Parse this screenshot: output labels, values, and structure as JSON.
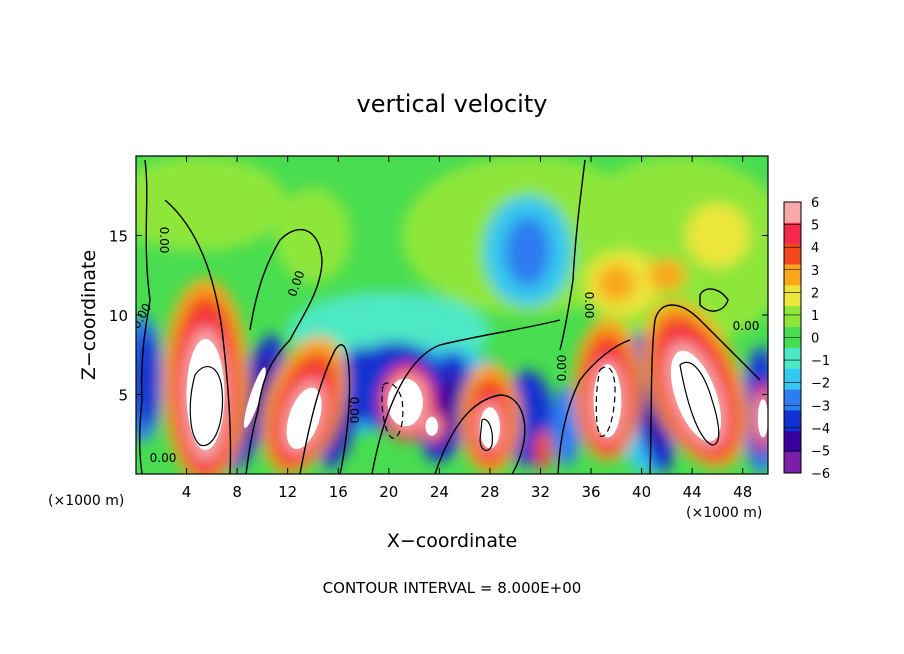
{
  "chart_data": {
    "type": "heatmap",
    "title": "vertical velocity",
    "xlabel": "X−coordinate",
    "ylabel": "Z−coordinate",
    "x_unit_left": "(×1000 m)",
    "x_unit_right": "(×1000 m)",
    "xlim": [
      0,
      50
    ],
    "ylim": [
      0,
      20
    ],
    "x_ticks": [
      4,
      8,
      12,
      16,
      20,
      24,
      28,
      32,
      36,
      40,
      44,
      48
    ],
    "y_ticks": [
      5,
      10,
      15
    ],
    "colorbar": {
      "min": -6,
      "max": 6,
      "ticks": [
        6,
        5,
        4,
        3,
        2,
        1,
        0,
        -1,
        -2,
        -3,
        -4,
        -5,
        -6
      ],
      "tick_labels": [
        "6",
        "5",
        "4",
        "3",
        "2",
        "1",
        "0",
        "−1",
        "−2",
        "−3",
        "−4",
        "−5",
        "−6"
      ],
      "colors": [
        "#7a1fa8",
        "#3a00a0",
        "#1230d0",
        "#2d7df0",
        "#35c8ee",
        "#4ee8c4",
        "#48dd50",
        "#8ee63a",
        "#ece63a",
        "#f9a81a",
        "#f24a1e",
        "#f52a4a",
        "#f7a8a8"
      ]
    },
    "contour_labels": [
      "0.00",
      "0.00",
      "0.00",
      "0.00",
      "0.00",
      "0.00",
      "0.00",
      "0.00"
    ],
    "footnote": "CONTOUR INTERVAL = 8.000E+00",
    "features": [
      {
        "kind": "updraft",
        "x": 5.5,
        "z": 5.0,
        "value": 6
      },
      {
        "kind": "downdraft",
        "x": 9.0,
        "z": 4.0,
        "value": -5
      },
      {
        "kind": "updraft",
        "x": 13.0,
        "z": 4.0,
        "value": 6
      },
      {
        "kind": "downdraft",
        "x": 16.5,
        "z": 4.0,
        "value": -5
      },
      {
        "kind": "updraft",
        "x": 20.0,
        "z": 4.5,
        "value": 6
      },
      {
        "kind": "downdraft",
        "x": 25.0,
        "z": 4.0,
        "value": -5
      },
      {
        "kind": "updraft",
        "x": 28.0,
        "z": 3.0,
        "value": 6
      },
      {
        "kind": "downdraft",
        "x": 31.0,
        "z": 13.5,
        "value": -3
      },
      {
        "kind": "updraft",
        "x": 37.0,
        "z": 5.0,
        "value": 6
      },
      {
        "kind": "downdraft",
        "x": 40.5,
        "z": 4.5,
        "value": -5
      },
      {
        "kind": "updraft",
        "x": 44.5,
        "z": 5.0,
        "value": 6
      },
      {
        "kind": "updraft",
        "x": 38.0,
        "z": 12.0,
        "value": 3
      },
      {
        "kind": "updraft",
        "x": 46.0,
        "z": 15.0,
        "value": 2
      },
      {
        "kind": "downdraft",
        "x": 49.5,
        "z": 4.0,
        "value": -4
      }
    ]
  }
}
